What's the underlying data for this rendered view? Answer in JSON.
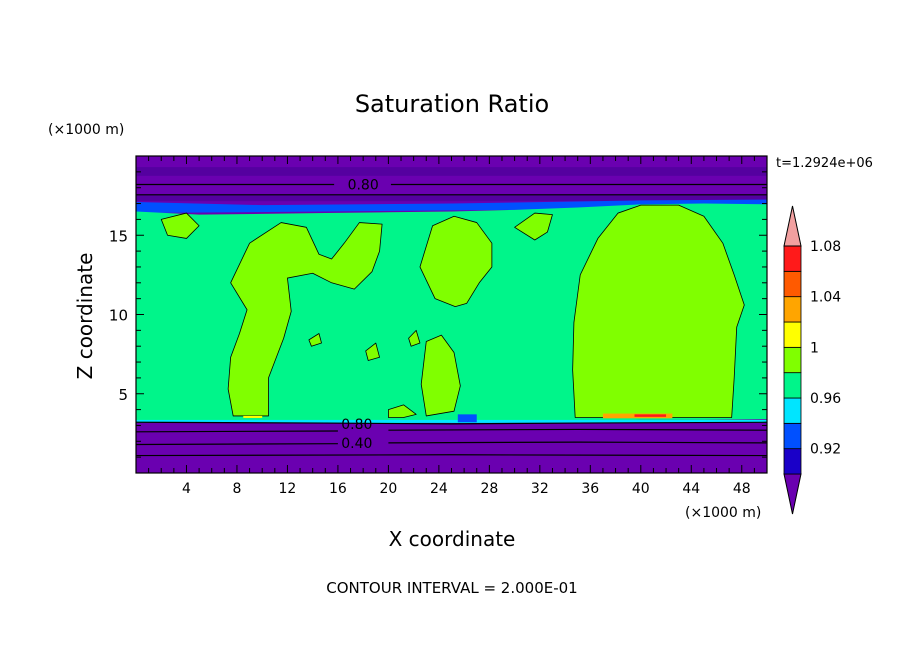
{
  "chart_data": {
    "type": "heatmap",
    "title": "Saturation Ratio",
    "xlabel": "X coordinate",
    "ylabel": "Z coordinate",
    "x_unit": "(×1000 m)",
    "y_unit": "(×1000 m)",
    "time_label": "t=1.2924e+06",
    "footer": "CONTOUR INTERVAL = 2.000E-01",
    "xlim": [
      0,
      50
    ],
    "ylim": [
      0,
      20
    ],
    "xticks": [
      4,
      8,
      12,
      16,
      20,
      24,
      28,
      32,
      36,
      40,
      44,
      48
    ],
    "yticks": [
      5,
      10,
      15
    ],
    "contour_labels": [
      {
        "text": "0.80",
        "x": 18.0,
        "y": 18.2
      },
      {
        "text": "0.80",
        "x": 17.5,
        "y": 3.1
      },
      {
        "text": "0.40",
        "x": 17.5,
        "y": 1.9
      }
    ],
    "colorbar": {
      "tick_labels": [
        "0.92",
        "0.96",
        "1",
        "1.04",
        "1.08"
      ],
      "colors": [
        "#6a00b0",
        "#1a00c8",
        "#0050ff",
        "#00e5ff",
        "#00f58a",
        "#80ff00",
        "#ffff00",
        "#ffa500",
        "#ff5a00",
        "#ff1a1a",
        "#f2a0a0"
      ],
      "extend": "both"
    },
    "layers": {
      "background": "#6a00b0",
      "band_dark": "#5500a0",
      "cloud_layer": "#00f58a",
      "supersat": "#80ff00",
      "edge_blue": "#0050ff",
      "edge_cyan": "#00e5ff",
      "hot_spot": "#ff1a1a",
      "warm_spot": "#ffa500"
    }
  }
}
